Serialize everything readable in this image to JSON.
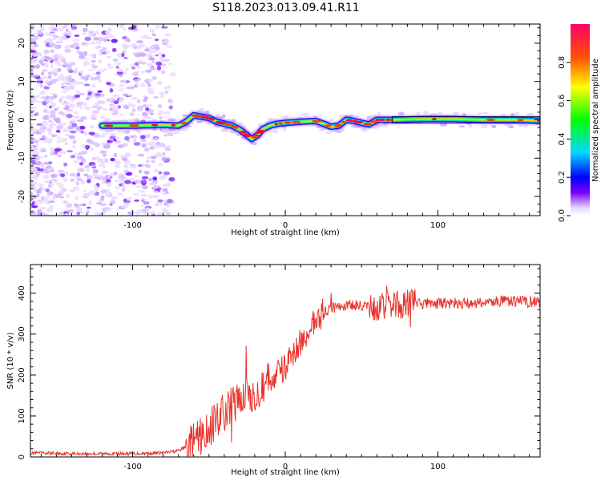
{
  "title": "S118.2023.013.09.41.R11",
  "chart_data": [
    {
      "type": "heatmap",
      "xlabel": "Height of straight line (km)",
      "ylabel": "Frequency (Hz)",
      "xlim": [
        -167,
        167
      ],
      "ylim": [
        -25,
        25
      ],
      "x_ticks": [
        -100,
        0,
        100
      ],
      "y_ticks": [
        -20,
        -10,
        0,
        10,
        20
      ],
      "noise_region_x": [
        -167,
        -75
      ],
      "ridge": [
        {
          "x": -120,
          "y": -1.5
        },
        {
          "x": -100,
          "y": -1.5
        },
        {
          "x": -80,
          "y": -1.3
        },
        {
          "x": -70,
          "y": -1.5
        },
        {
          "x": -65,
          "y": -0.5
        },
        {
          "x": -60,
          "y": 1.2
        },
        {
          "x": -55,
          "y": 0.8
        },
        {
          "x": -50,
          "y": 0.5
        },
        {
          "x": -45,
          "y": -0.5
        },
        {
          "x": -40,
          "y": -1.0
        },
        {
          "x": -35,
          "y": -1.5
        },
        {
          "x": -30,
          "y": -2.5
        },
        {
          "x": -25,
          "y": -4.0
        },
        {
          "x": -22,
          "y": -5.0
        },
        {
          "x": -18,
          "y": -4.0
        },
        {
          "x": -15,
          "y": -2.5
        },
        {
          "x": -10,
          "y": -1.5
        },
        {
          "x": -5,
          "y": -1.0
        },
        {
          "x": 0,
          "y": -0.8
        },
        {
          "x": 10,
          "y": -0.5
        },
        {
          "x": 20,
          "y": -0.3
        },
        {
          "x": 25,
          "y": -1.0
        },
        {
          "x": 30,
          "y": -1.8
        },
        {
          "x": 35,
          "y": -1.5
        },
        {
          "x": 40,
          "y": 0.0
        },
        {
          "x": 45,
          "y": -0.3
        },
        {
          "x": 50,
          "y": -0.8
        },
        {
          "x": 55,
          "y": -1.2
        },
        {
          "x": 60,
          "y": 0.0
        },
        {
          "x": 70,
          "y": 0.0
        },
        {
          "x": 90,
          "y": 0.2
        },
        {
          "x": 110,
          "y": 0.2
        },
        {
          "x": 130,
          "y": 0.0
        },
        {
          "x": 150,
          "y": 0.0
        },
        {
          "x": 167,
          "y": -0.2
        }
      ],
      "colorbar": {
        "label": "Normalized spectral amplitude",
        "range": [
          0,
          1
        ],
        "ticks": [
          0.0,
          0.2,
          0.4,
          0.6,
          0.8
        ]
      }
    },
    {
      "type": "line",
      "xlabel": "Height of straight line (km)",
      "ylabel": "SNR (10 * v/v)",
      "xlim": [
        -167,
        167
      ],
      "ylim": [
        0,
        470
      ],
      "x_ticks": [
        -100,
        0,
        100
      ],
      "y_ticks": [
        0,
        100,
        200,
        300,
        400
      ],
      "color": "#e8332a",
      "series": [
        {
          "x": [
            -167,
            -140,
            -120,
            -100,
            -80,
            -70,
            -60,
            -55,
            -50,
            -45,
            -40,
            -35,
            -30,
            -25,
            -20,
            -15,
            -10,
            -5,
            0,
            5,
            10,
            15,
            20,
            25,
            30,
            40,
            50,
            55,
            60,
            65,
            70,
            75,
            80,
            90,
            100,
            120,
            140,
            167
          ],
          "values": [
            10,
            8,
            8,
            8,
            10,
            15,
            35,
            50,
            70,
            90,
            110,
            125,
            140,
            150,
            160,
            175,
            190,
            205,
            220,
            250,
            280,
            310,
            330,
            350,
            365,
            370,
            370,
            365,
            360,
            370,
            375,
            370,
            375,
            375,
            375,
            375,
            380,
            380
          ]
        }
      ]
    }
  ]
}
